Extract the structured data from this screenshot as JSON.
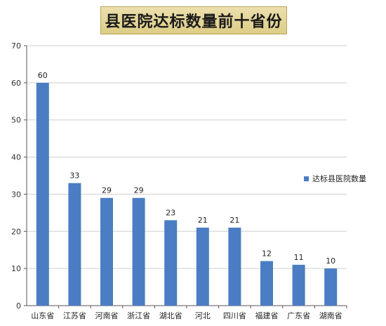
{
  "chart_data": {
    "type": "bar",
    "title": "县医院达标数量前十省份",
    "categories": [
      "山东省",
      "江苏省",
      "河南省",
      "浙江省",
      "湖北省",
      "河北",
      "四川省",
      "福建省",
      "广东省",
      "湖南省"
    ],
    "series": [
      {
        "name": "达标县医院数量",
        "values": [
          60,
          33,
          29,
          29,
          23,
          21,
          21,
          12,
          11,
          10
        ]
      }
    ],
    "ylim": [
      0,
      70
    ],
    "yticks": [
      0,
      10,
      20,
      30,
      40,
      50,
      60,
      70
    ],
    "grid": true,
    "legend_position": "right",
    "colors": {
      "bar": "#4a7dc4",
      "grid": "#cfcfcf",
      "axis": "#555555"
    }
  }
}
